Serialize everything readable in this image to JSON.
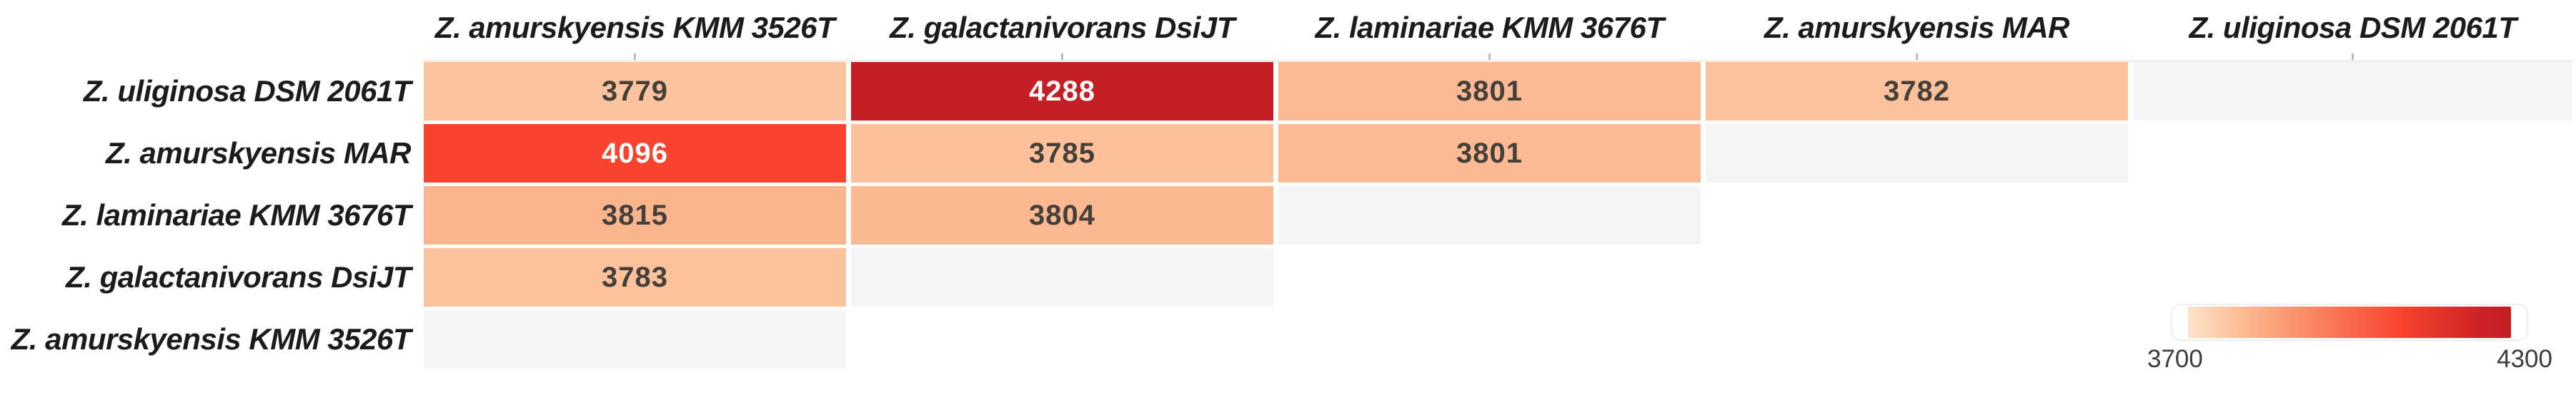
{
  "chart_data": {
    "type": "heatmap",
    "title": "",
    "columns": [
      "Z. amurskyensis KMM 3526T",
      "Z. galactanivorans DsiJT",
      "Z. laminariae KMM 3676T",
      "Z. amurskyensis MAR",
      "Z. uliginosa DSM 2061T"
    ],
    "rows": [
      "Z. uliginosa DSM 2061T",
      "Z. amurskyensis MAR",
      "Z. laminariae KMM 3676T",
      "Z. galactanivorans DsiJT",
      "Z. amurskyensis KMM 3526T"
    ],
    "matrix": [
      [
        3779,
        4288,
        3801,
        3782,
        "self"
      ],
      [
        4096,
        3785,
        3801,
        "self",
        null
      ],
      [
        3815,
        3804,
        "self",
        null,
        null
      ],
      [
        3783,
        "self",
        null,
        null,
        null
      ],
      [
        "self",
        null,
        null,
        null,
        null
      ]
    ],
    "colorscale": {
      "min": 3700,
      "max": 4300,
      "stops": [
        {
          "t": 0.0,
          "color": "#FDE3CA"
        },
        {
          "t": 0.13,
          "color": "#FCC49F"
        },
        {
          "t": 0.19,
          "color": "#FBB58C"
        },
        {
          "t": 0.4,
          "color": "#FA825F"
        },
        {
          "t": 0.66,
          "color": "#F9432F"
        },
        {
          "t": 0.9,
          "color": "#CE2326"
        },
        {
          "t": 1.0,
          "color": "#C21E24"
        }
      ],
      "white_text_threshold": 4000
    },
    "legend": {
      "min_label": "3700",
      "max_label": "4300",
      "position": "bottom-right"
    },
    "layout_hints": {
      "shape": "upper-left-triangle",
      "diagonal_cells": "blank-gray",
      "grid": "off"
    }
  },
  "colors": {
    "background": "#FFFFFF",
    "diagonal_cell": "#F5F5F6",
    "value_text_dark": "#46403A",
    "value_text_light": "#FFFFFF",
    "label_text": "#1C1C1C",
    "legend_label_text": "#3C3C3C",
    "tick": "#BDBDBD",
    "grid_top_line": "#F0F0F1"
  }
}
